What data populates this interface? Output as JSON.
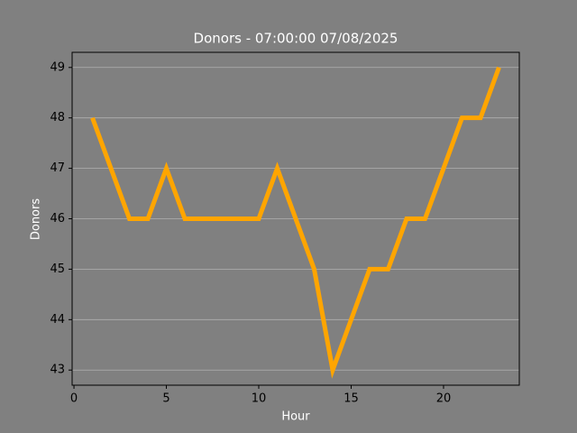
{
  "chart_data": {
    "type": "line",
    "title": "Donors - 07:00:00 07/08/2025",
    "x_label": "Hour",
    "y_label": "Donors",
    "x": [
      1,
      2,
      3,
      4,
      5,
      6,
      7,
      8,
      9,
      10,
      11,
      12,
      13,
      14,
      15,
      16,
      17,
      18,
      19,
      20,
      21,
      22,
      23
    ],
    "series": [
      {
        "name": "Donors",
        "color": "#ffa500",
        "values": [
          48,
          47,
          46,
          46,
          47,
          46,
          46,
          46,
          46,
          46,
          47,
          46,
          45,
          43,
          44,
          45,
          45,
          46,
          46,
          47,
          48,
          48,
          49
        ]
      }
    ],
    "xlim": [
      -0.1,
      24.1
    ],
    "xticks": [
      0,
      5,
      10,
      15,
      20
    ],
    "ylim": [
      42.7,
      49.3
    ],
    "yticks": [
      43,
      44,
      45,
      46,
      47,
      48,
      49
    ],
    "grid": "y"
  }
}
